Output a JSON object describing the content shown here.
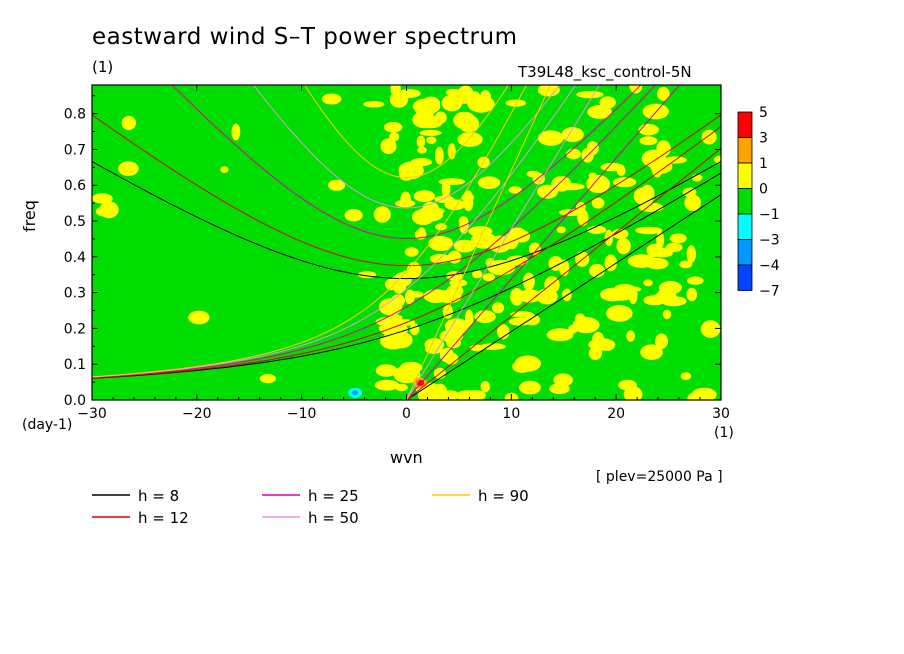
{
  "chart_data": {
    "type": "heatmap",
    "title": "eastward wind S–T power spectrum",
    "subtitle_left": "(1)",
    "subtitle_right": "T39L48_ksc_control-5N",
    "xlabel": "wvn",
    "ylabel": "freq",
    "x_unit": "(1)",
    "y_unit": "(day-1)",
    "xlim": [
      -30,
      30
    ],
    "ylim": [
      0,
      0.88
    ],
    "xticks": [
      "−30",
      "−20",
      "−10",
      "0",
      "10",
      "20",
      "30"
    ],
    "yticks": [
      "0.0",
      "0.1",
      "0.2",
      "0.3",
      "0.4",
      "0.5",
      "0.6",
      "0.7",
      "0.8"
    ],
    "note": "[ plev=25000 Pa ]",
    "colorbar": {
      "labels": [
        "5",
        "3",
        "1",
        "0",
        "−1",
        "−3",
        "−4",
        "−7"
      ],
      "colors": [
        "#ff0000",
        "#ffa500",
        "#ffff00",
        "#00dd00",
        "#00ffff",
        "#0099ff",
        "#0044ff"
      ]
    },
    "dispersion_curves": [
      {
        "name": "h =  8",
        "color": "#000000",
        "h": 8
      },
      {
        "name": "h = 12",
        "color": "#dd0000",
        "h": 12
      },
      {
        "name": "h = 25",
        "color": "#dd00aa",
        "h": 25
      },
      {
        "name": "h = 50",
        "color": "#dd99dd",
        "h": 50
      },
      {
        "name": "h = 90",
        "color": "#ffcc00",
        "h": 90
      }
    ]
  },
  "legend": [
    {
      "label": "h =  8",
      "color": "#000000"
    },
    {
      "label": "h = 12",
      "color": "#dd0000"
    },
    {
      "label": "h = 25",
      "color": "#dd00aa"
    },
    {
      "label": "h = 50",
      "color": "#dd99dd"
    },
    {
      "label": "h = 90",
      "color": "#ffcc00"
    }
  ]
}
